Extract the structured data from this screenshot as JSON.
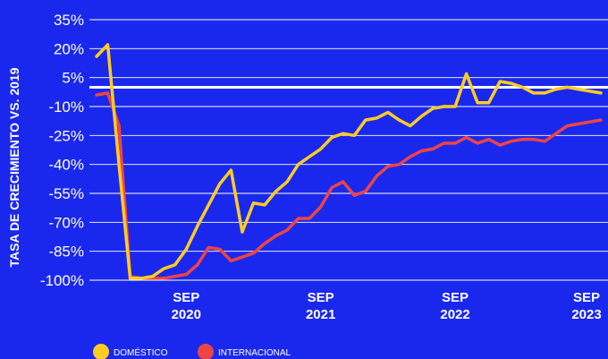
{
  "chart_data": {
    "type": "line",
    "title": "",
    "ylabel": "TASA DE CRECIMIENTO VS. 2019",
    "xlabel": "",
    "y_ticks": [
      35,
      20,
      5,
      -10,
      -25,
      -40,
      -55,
      -70,
      -85,
      -100
    ],
    "y_tick_labels": [
      "35%",
      "20%",
      "5%",
      "-10%",
      "-25%",
      "-40%",
      "-55%",
      "-70%",
      "-85%",
      "-100%"
    ],
    "ylim": [
      -100,
      35
    ],
    "x_range": [
      "2020-01",
      "2023-10"
    ],
    "x_ticks": [
      {
        "date": "2020-09",
        "line1": "SEP",
        "line2": "2020"
      },
      {
        "date": "2021-09",
        "line1": "SEP",
        "line2": "2021"
      },
      {
        "date": "2022-09",
        "line1": "SEP",
        "line2": "2022"
      },
      {
        "date": "2023-09",
        "line1": "SEP",
        "line2": "2023"
      }
    ],
    "reference_line": 0,
    "grid": true,
    "legend": "bottom-left",
    "series": [
      {
        "name": "DOMÉSTICO",
        "color": "#ffcc22",
        "points": [
          [
            "2020-01",
            16
          ],
          [
            "2020-02",
            22
          ],
          [
            "2020-03",
            -40
          ],
          [
            "2020-04",
            -99
          ],
          [
            "2020-05",
            -99
          ],
          [
            "2020-06",
            -98
          ],
          [
            "2020-07",
            -94
          ],
          [
            "2020-08",
            -92
          ],
          [
            "2020-09",
            -84
          ],
          [
            "2020-10",
            -72
          ],
          [
            "2020-11",
            -61
          ],
          [
            "2020-12",
            -50
          ],
          [
            "2021-01",
            -43
          ],
          [
            "2021-02",
            -75
          ],
          [
            "2021-03",
            -60
          ],
          [
            "2021-04",
            -61
          ],
          [
            "2021-05",
            -54
          ],
          [
            "2021-06",
            -49
          ],
          [
            "2021-07",
            -40
          ],
          [
            "2021-08",
            -36
          ],
          [
            "2021-09",
            -32
          ],
          [
            "2021-10",
            -26
          ],
          [
            "2021-11",
            -24
          ],
          [
            "2021-12",
            -25
          ],
          [
            "2022-01",
            -17
          ],
          [
            "2022-02",
            -16
          ],
          [
            "2022-03",
            -13
          ],
          [
            "2022-04",
            -17
          ],
          [
            "2022-05",
            -20
          ],
          [
            "2022-06",
            -15
          ],
          [
            "2022-07",
            -11
          ],
          [
            "2022-08",
            -10
          ],
          [
            "2022-09",
            -10
          ],
          [
            "2022-10",
            7
          ],
          [
            "2022-11",
            -8
          ],
          [
            "2022-12",
            -8
          ],
          [
            "2023-01",
            3
          ],
          [
            "2023-02",
            2
          ],
          [
            "2023-03",
            0
          ],
          [
            "2023-04",
            -3
          ],
          [
            "2023-05",
            -3
          ],
          [
            "2023-06",
            -1
          ],
          [
            "2023-07",
            0
          ],
          [
            "2023-08",
            -1
          ],
          [
            "2023-09",
            -2
          ],
          [
            "2023-10",
            -3
          ]
        ]
      },
      {
        "name": "INTERNACIONAL",
        "color": "#ee4444",
        "points": [
          [
            "2020-01",
            -4
          ],
          [
            "2020-02",
            -3
          ],
          [
            "2020-03",
            -20
          ],
          [
            "2020-04",
            -98
          ],
          [
            "2020-05",
            -99
          ],
          [
            "2020-06",
            -99
          ],
          [
            "2020-07",
            -99
          ],
          [
            "2020-08",
            -98
          ],
          [
            "2020-09",
            -97
          ],
          [
            "2020-10",
            -92
          ],
          [
            "2020-11",
            -83
          ],
          [
            "2020-12",
            -84
          ],
          [
            "2021-01",
            -90
          ],
          [
            "2021-02",
            -88
          ],
          [
            "2021-03",
            -86
          ],
          [
            "2021-04",
            -81
          ],
          [
            "2021-05",
            -77
          ],
          [
            "2021-06",
            -74
          ],
          [
            "2021-07",
            -68
          ],
          [
            "2021-08",
            -68
          ],
          [
            "2021-09",
            -62
          ],
          [
            "2021-10",
            -52
          ],
          [
            "2021-11",
            -49
          ],
          [
            "2021-12",
            -56
          ],
          [
            "2022-01",
            -54
          ],
          [
            "2022-02",
            -46
          ],
          [
            "2022-03",
            -41
          ],
          [
            "2022-04",
            -40
          ],
          [
            "2022-05",
            -36
          ],
          [
            "2022-06",
            -33
          ],
          [
            "2022-07",
            -32
          ],
          [
            "2022-08",
            -29
          ],
          [
            "2022-09",
            -29
          ],
          [
            "2022-10",
            -26
          ],
          [
            "2022-11",
            -29
          ],
          [
            "2022-12",
            -27
          ],
          [
            "2023-01",
            -30
          ],
          [
            "2023-02",
            -28
          ],
          [
            "2023-03",
            -27
          ],
          [
            "2023-04",
            -27
          ],
          [
            "2023-05",
            -28
          ],
          [
            "2023-06",
            -24
          ],
          [
            "2023-07",
            -20
          ],
          [
            "2023-08",
            -19
          ],
          [
            "2023-09",
            -18
          ],
          [
            "2023-10",
            -17
          ]
        ]
      }
    ]
  }
}
